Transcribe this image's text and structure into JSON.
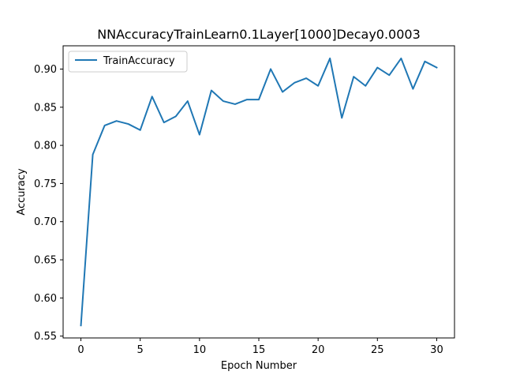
{
  "chart_data": {
    "type": "line",
    "title": "NNAccuracyTrainLearn0.1Layer[1000]Decay0.0003",
    "xlabel": "Epoch Number",
    "ylabel": "Accuracy",
    "xlim": [
      -1.5,
      31.5
    ],
    "ylim": [
      0.5476,
      0.9305
    ],
    "xticks": [
      0,
      5,
      10,
      15,
      20,
      25,
      30
    ],
    "xtick_labels": [
      "0",
      "5",
      "10",
      "15",
      "20",
      "25",
      "30"
    ],
    "yticks": [
      0.55,
      0.6,
      0.65,
      0.7,
      0.75,
      0.8,
      0.85,
      0.9
    ],
    "ytick_labels": [
      "0.55",
      "0.60",
      "0.65",
      "0.70",
      "0.75",
      "0.80",
      "0.85",
      "0.90"
    ],
    "grid": false,
    "legend_position": "top-left",
    "series": [
      {
        "name": "TrainAccuracy",
        "color": "#1f77b4",
        "x": [
          0,
          1,
          2,
          3,
          4,
          5,
          6,
          7,
          8,
          9,
          10,
          11,
          12,
          13,
          14,
          15,
          16,
          17,
          18,
          19,
          20,
          21,
          22,
          23,
          24,
          25,
          26,
          27,
          28,
          29,
          30
        ],
        "y": [
          0.564,
          0.788,
          0.826,
          0.832,
          0.828,
          0.82,
          0.864,
          0.83,
          0.838,
          0.858,
          0.814,
          0.872,
          0.858,
          0.854,
          0.86,
          0.86,
          0.9,
          0.87,
          0.882,
          0.888,
          0.878,
          0.914,
          0.836,
          0.89,
          0.878,
          0.902,
          0.892,
          0.914,
          0.874,
          0.91,
          0.902
        ]
      }
    ]
  }
}
